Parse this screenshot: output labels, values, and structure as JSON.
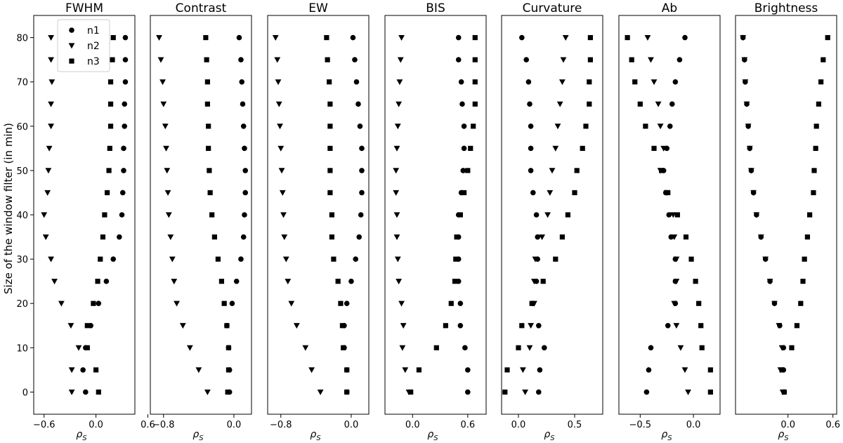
{
  "figure": {
    "ylabel": "Size of the window filter (in min)",
    "xlabel": "ρ",
    "xlabel_sub": "S"
  },
  "chart_data": {
    "type": "scatter",
    "y_values": [
      0,
      5,
      10,
      15,
      20,
      25,
      30,
      35,
      40,
      45,
      50,
      55,
      60,
      65,
      70,
      75,
      80
    ],
    "ylim": [
      -5,
      85
    ],
    "y_ticks": [
      0,
      10,
      20,
      30,
      40,
      50,
      60,
      70,
      80
    ],
    "legend": {
      "location": "upper-left of first panel",
      "entries": [
        {
          "name": "n1",
          "marker": "circle"
        },
        {
          "name": "n2",
          "marker": "triangle-down"
        },
        {
          "name": "n3",
          "marker": "square"
        }
      ]
    },
    "marker_color": "#000000",
    "grid": false,
    "panels": [
      {
        "title": "FWHM",
        "xlim": [
          -0.72,
          0.45
        ],
        "x_ticks": [
          -0.6,
          0.0,
          0.6
        ],
        "x_tick_labels": [
          "−0.6",
          "0.0",
          "0.6"
        ],
        "series": [
          {
            "name": "n1",
            "marker": "circle",
            "values": [
              -0.12,
              -0.15,
              -0.12,
              -0.06,
              0.03,
              0.12,
              0.2,
              0.27,
              0.3,
              0.31,
              0.32,
              0.32,
              0.33,
              0.33,
              0.34,
              0.34,
              0.34
            ]
          },
          {
            "name": "n2",
            "marker": "triangle-down",
            "values": [
              -0.28,
              -0.28,
              -0.2,
              -0.29,
              -0.4,
              -0.48,
              -0.52,
              -0.58,
              -0.6,
              -0.56,
              -0.55,
              -0.54,
              -0.52,
              -0.52,
              -0.51,
              -0.52,
              -0.52
            ]
          },
          {
            "name": "n3",
            "marker": "square",
            "values": [
              0.03,
              0.0,
              -0.1,
              -0.1,
              -0.03,
              0.02,
              0.05,
              0.08,
              0.1,
              0.13,
              0.15,
              0.16,
              0.17,
              0.17,
              0.17,
              0.19,
              0.2
            ]
          }
        ]
      },
      {
        "title": "Contrast",
        "xlim": [
          -0.95,
          0.2
        ],
        "x_ticks": [
          -0.8,
          0.0
        ],
        "x_tick_labels": [
          "−0.8",
          "0.0"
        ],
        "series": [
          {
            "name": "n1",
            "marker": "circle",
            "values": [
              -0.05,
              -0.05,
              -0.06,
              -0.08,
              -0.02,
              0.03,
              0.08,
              0.11,
              0.12,
              0.13,
              0.13,
              0.12,
              0.11,
              0.1,
              0.09,
              0.08,
              0.06
            ]
          },
          {
            "name": "n2",
            "marker": "triangle-down",
            "values": [
              -0.3,
              -0.4,
              -0.5,
              -0.58,
              -0.65,
              -0.68,
              -0.7,
              -0.72,
              -0.74,
              -0.75,
              -0.76,
              -0.77,
              -0.78,
              -0.8,
              -0.81,
              -0.83,
              -0.85
            ]
          },
          {
            "name": "n3",
            "marker": "square",
            "values": [
              -0.07,
              -0.06,
              -0.06,
              -0.08,
              -0.11,
              -0.14,
              -0.18,
              -0.22,
              -0.25,
              -0.27,
              -0.28,
              -0.29,
              -0.29,
              -0.3,
              -0.3,
              -0.31,
              -0.32
            ]
          }
        ]
      },
      {
        "title": "EW",
        "xlim": [
          -0.95,
          0.2
        ],
        "x_ticks": [
          -0.8,
          0.0
        ],
        "x_tick_labels": [
          "−0.8",
          "0.0"
        ],
        "series": [
          {
            "name": "n1",
            "marker": "circle",
            "values": [
              -0.05,
              -0.05,
              -0.08,
              -0.08,
              -0.05,
              0.0,
              0.05,
              0.09,
              0.11,
              0.12,
              0.12,
              0.12,
              0.1,
              0.08,
              0.06,
              0.04,
              0.02
            ]
          },
          {
            "name": "n2",
            "marker": "triangle-down",
            "values": [
              -0.35,
              -0.45,
              -0.52,
              -0.62,
              -0.68,
              -0.72,
              -0.74,
              -0.76,
              -0.77,
              -0.78,
              -0.79,
              -0.8,
              -0.81,
              -0.82,
              -0.83,
              -0.84,
              -0.86
            ]
          },
          {
            "name": "n3",
            "marker": "square",
            "values": [
              -0.05,
              -0.05,
              -0.09,
              -0.1,
              -0.12,
              -0.15,
              -0.2,
              -0.22,
              -0.22,
              -0.24,
              -0.24,
              -0.24,
              -0.24,
              -0.24,
              -0.25,
              -0.27,
              -0.28
            ]
          }
        ]
      },
      {
        "title": "BIS",
        "xlim": [
          -0.3,
          0.8
        ],
        "x_ticks": [
          0.0,
          0.6
        ],
        "x_tick_labels": [
          "0.0",
          "0.6"
        ],
        "series": [
          {
            "name": "n1",
            "marker": "circle",
            "values": [
              0.6,
              0.6,
              0.57,
              0.52,
              0.52,
              0.5,
              0.5,
              0.5,
              0.5,
              0.53,
              0.55,
              0.56,
              0.56,
              0.54,
              0.53,
              0.5,
              0.5
            ]
          },
          {
            "name": "n2",
            "marker": "triangle-down",
            "values": [
              -0.04,
              -0.08,
              -0.11,
              -0.1,
              -0.12,
              -0.15,
              -0.16,
              -0.17,
              -0.17,
              -0.18,
              -0.18,
              -0.17,
              -0.16,
              -0.15,
              -0.14,
              -0.13,
              -0.12
            ]
          },
          {
            "name": "n3",
            "marker": "square",
            "values": [
              -0.02,
              0.07,
              0.26,
              0.36,
              0.42,
              0.46,
              0.47,
              0.48,
              0.52,
              0.56,
              0.6,
              0.63,
              0.66,
              0.68,
              0.68,
              0.68,
              0.68
            ]
          }
        ]
      },
      {
        "title": "Curvature",
        "xlim": [
          -0.15,
          0.75
        ],
        "x_ticks": [
          0.0,
          0.5
        ],
        "x_tick_labels": [
          "0.0",
          "0.5"
        ],
        "series": [
          {
            "name": "n1",
            "marker": "circle",
            "values": [
              0.18,
              0.19,
              0.23,
              0.18,
              0.13,
              0.16,
              0.17,
              0.17,
              0.16,
              0.13,
              0.11,
              0.11,
              0.11,
              0.1,
              0.09,
              0.07,
              0.03
            ]
          },
          {
            "name": "n2",
            "marker": "triangle-down",
            "values": [
              0.06,
              0.04,
              0.1,
              0.11,
              0.14,
              0.14,
              0.15,
              0.21,
              0.26,
              0.28,
              0.3,
              0.33,
              0.35,
              0.37,
              0.39,
              0.4,
              0.42
            ]
          },
          {
            "name": "n3",
            "marker": "square",
            "values": [
              -0.12,
              -0.1,
              0.0,
              0.03,
              0.12,
              0.22,
              0.33,
              0.39,
              0.44,
              0.5,
              0.52,
              0.57,
              0.6,
              0.63,
              0.63,
              0.64,
              0.64
            ]
          }
        ]
      },
      {
        "title": "Ab",
        "xlim": [
          -0.7,
          0.25
        ],
        "x_ticks": [
          -0.5,
          0.0
        ],
        "x_tick_labels": [
          "−0.5",
          "0.0"
        ],
        "series": [
          {
            "name": "n1",
            "marker": "circle",
            "values": [
              -0.44,
              -0.42,
              -0.4,
              -0.24,
              -0.17,
              -0.17,
              -0.17,
              -0.21,
              -0.23,
              -0.26,
              -0.28,
              -0.25,
              -0.22,
              -0.2,
              -0.17,
              -0.13,
              -0.08
            ]
          },
          {
            "name": "n2",
            "marker": "triangle-down",
            "values": [
              -0.05,
              -0.08,
              -0.12,
              -0.16,
              -0.18,
              -0.16,
              -0.16,
              -0.18,
              -0.19,
              -0.25,
              -0.31,
              -0.28,
              -0.31,
              -0.33,
              -0.37,
              -0.4,
              -0.43
            ]
          },
          {
            "name": "n3",
            "marker": "square",
            "values": [
              0.16,
              0.16,
              0.08,
              0.07,
              0.05,
              0.02,
              -0.02,
              -0.07,
              -0.15,
              -0.24,
              -0.3,
              -0.37,
              -0.45,
              -0.5,
              -0.55,
              -0.58,
              -0.62
            ]
          }
        ]
      },
      {
        "title": "Brightness",
        "xlim": [
          -0.7,
          0.65
        ],
        "x_ticks": [
          0.0,
          0.6
        ],
        "x_tick_labels": [
          "0.0",
          "0.6"
        ],
        "series": [
          {
            "name": "n1",
            "marker": "circle",
            "values": [
              -0.05,
              -0.06,
              -0.06,
              -0.11,
              -0.18,
              -0.24,
              -0.3,
              -0.36,
              -0.42,
              -0.46,
              -0.49,
              -0.51,
              -0.53,
              -0.55,
              -0.57,
              -0.58,
              -0.6
            ]
          },
          {
            "name": "n2",
            "marker": "triangle-down",
            "values": [
              -0.07,
              -0.1,
              -0.08,
              -0.12,
              -0.18,
              -0.24,
              -0.3,
              -0.36,
              -0.42,
              -0.46,
              -0.49,
              -0.51,
              -0.53,
              -0.55,
              -0.57,
              -0.58,
              -0.6
            ]
          },
          {
            "name": "n3",
            "marker": "square",
            "values": [
              -0.05,
              -0.08,
              0.05,
              0.12,
              0.17,
              0.2,
              0.22,
              0.26,
              0.29,
              0.34,
              0.35,
              0.37,
              0.38,
              0.41,
              0.44,
              0.47,
              0.53
            ]
          }
        ]
      }
    ]
  }
}
